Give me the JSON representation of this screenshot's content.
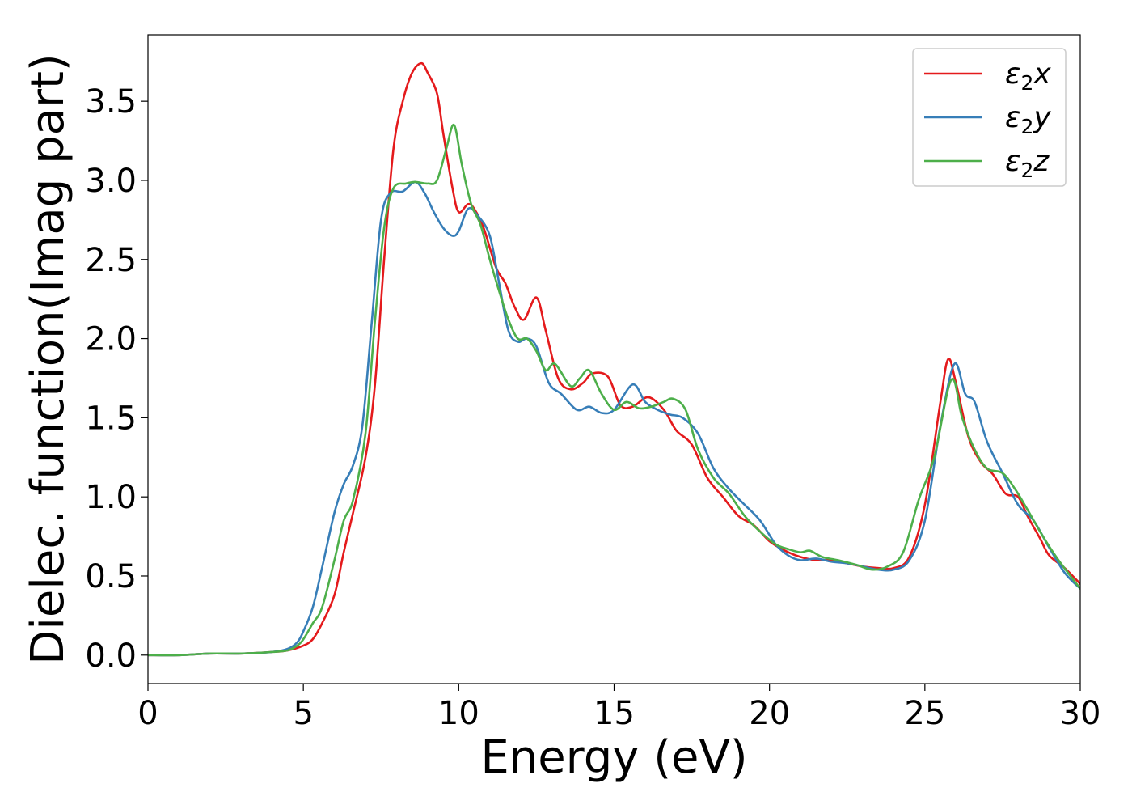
{
  "chart_data": {
    "type": "line",
    "title": "",
    "xlabel": "Energy (eV)",
    "ylabel": "Dielec. function(Imag part)",
    "xlim": [
      0,
      30
    ],
    "ylim": [
      -0.18,
      3.92
    ],
    "xticks": [
      0,
      5,
      10,
      15,
      20,
      25,
      30
    ],
    "xtick_labels": [
      "0",
      "5",
      "10",
      "15",
      "20",
      "25",
      "30"
    ],
    "yticks": [
      0.0,
      0.5,
      1.0,
      1.5,
      2.0,
      2.5,
      3.0,
      3.5
    ],
    "ytick_labels": [
      "0.0",
      "0.5",
      "1.0",
      "1.5",
      "2.0",
      "2.5",
      "3.0",
      "3.5"
    ],
    "grid": false,
    "legend_position": "top-right",
    "series": [
      {
        "name": "ε2x",
        "base": "ε",
        "sub": "2",
        "suffix": "x",
        "color": "#e41a1c",
        "points": [
          [
            0,
            0.0
          ],
          [
            1,
            0.0
          ],
          [
            2,
            0.01
          ],
          [
            3,
            0.01
          ],
          [
            4,
            0.02
          ],
          [
            4.5,
            0.03
          ],
          [
            5,
            0.06
          ],
          [
            5.3,
            0.1
          ],
          [
            5.6,
            0.2
          ],
          [
            6,
            0.38
          ],
          [
            6.3,
            0.65
          ],
          [
            6.6,
            0.9
          ],
          [
            7,
            1.25
          ],
          [
            7.3,
            1.7
          ],
          [
            7.6,
            2.5
          ],
          [
            7.9,
            3.2
          ],
          [
            8.2,
            3.5
          ],
          [
            8.5,
            3.68
          ],
          [
            8.8,
            3.74
          ],
          [
            9.0,
            3.68
          ],
          [
            9.3,
            3.55
          ],
          [
            9.5,
            3.3
          ],
          [
            9.8,
            2.95
          ],
          [
            10.0,
            2.8
          ],
          [
            10.3,
            2.85
          ],
          [
            10.5,
            2.82
          ],
          [
            10.8,
            2.7
          ],
          [
            11.2,
            2.45
          ],
          [
            11.5,
            2.35
          ],
          [
            11.8,
            2.2
          ],
          [
            12.1,
            2.12
          ],
          [
            12.5,
            2.26
          ],
          [
            12.8,
            2.05
          ],
          [
            13.2,
            1.75
          ],
          [
            13.6,
            1.68
          ],
          [
            14.0,
            1.72
          ],
          [
            14.3,
            1.78
          ],
          [
            14.8,
            1.76
          ],
          [
            15.2,
            1.58
          ],
          [
            15.6,
            1.57
          ],
          [
            16.1,
            1.63
          ],
          [
            16.6,
            1.55
          ],
          [
            17.0,
            1.42
          ],
          [
            17.5,
            1.33
          ],
          [
            18.0,
            1.12
          ],
          [
            18.5,
            1.0
          ],
          [
            19.0,
            0.88
          ],
          [
            19.5,
            0.82
          ],
          [
            20.0,
            0.72
          ],
          [
            20.5,
            0.66
          ],
          [
            21.0,
            0.62
          ],
          [
            21.5,
            0.6
          ],
          [
            22.0,
            0.6
          ],
          [
            22.5,
            0.58
          ],
          [
            23.0,
            0.56
          ],
          [
            23.5,
            0.55
          ],
          [
            24.0,
            0.55
          ],
          [
            24.5,
            0.62
          ],
          [
            25.0,
            0.95
          ],
          [
            25.5,
            1.6
          ],
          [
            25.75,
            1.87
          ],
          [
            26.0,
            1.72
          ],
          [
            26.4,
            1.38
          ],
          [
            26.8,
            1.22
          ],
          [
            27.2,
            1.14
          ],
          [
            27.6,
            1.02
          ],
          [
            28.0,
            1.0
          ],
          [
            28.3,
            0.88
          ],
          [
            28.7,
            0.74
          ],
          [
            29.0,
            0.63
          ],
          [
            29.5,
            0.55
          ],
          [
            30.0,
            0.45
          ]
        ]
      },
      {
        "name": "ε2y",
        "base": "ε",
        "sub": "2",
        "suffix": "y",
        "color": "#377eb8",
        "points": [
          [
            0,
            0.0
          ],
          [
            1,
            0.0
          ],
          [
            2,
            0.01
          ],
          [
            3,
            0.01
          ],
          [
            4,
            0.02
          ],
          [
            4.5,
            0.04
          ],
          [
            4.8,
            0.08
          ],
          [
            5.0,
            0.15
          ],
          [
            5.3,
            0.3
          ],
          [
            5.6,
            0.55
          ],
          [
            6.0,
            0.9
          ],
          [
            6.3,
            1.08
          ],
          [
            6.6,
            1.2
          ],
          [
            6.9,
            1.45
          ],
          [
            7.2,
            2.1
          ],
          [
            7.5,
            2.75
          ],
          [
            7.8,
            2.92
          ],
          [
            8.2,
            2.93
          ],
          [
            8.6,
            2.99
          ],
          [
            8.9,
            2.92
          ],
          [
            9.2,
            2.8
          ],
          [
            9.5,
            2.7
          ],
          [
            9.8,
            2.65
          ],
          [
            10.0,
            2.68
          ],
          [
            10.3,
            2.82
          ],
          [
            10.6,
            2.78
          ],
          [
            11.0,
            2.65
          ],
          [
            11.3,
            2.35
          ],
          [
            11.6,
            2.05
          ],
          [
            11.9,
            1.98
          ],
          [
            12.2,
            2.0
          ],
          [
            12.5,
            1.95
          ],
          [
            12.9,
            1.72
          ],
          [
            13.3,
            1.65
          ],
          [
            13.8,
            1.55
          ],
          [
            14.2,
            1.57
          ],
          [
            14.6,
            1.53
          ],
          [
            15.0,
            1.55
          ],
          [
            15.6,
            1.71
          ],
          [
            16.0,
            1.6
          ],
          [
            16.4,
            1.55
          ],
          [
            16.8,
            1.52
          ],
          [
            17.2,
            1.5
          ],
          [
            17.7,
            1.4
          ],
          [
            18.2,
            1.18
          ],
          [
            18.7,
            1.05
          ],
          [
            19.2,
            0.95
          ],
          [
            19.7,
            0.85
          ],
          [
            20.2,
            0.7
          ],
          [
            20.6,
            0.63
          ],
          [
            21.0,
            0.6
          ],
          [
            21.5,
            0.61
          ],
          [
            22.0,
            0.59
          ],
          [
            22.5,
            0.58
          ],
          [
            23.0,
            0.56
          ],
          [
            23.5,
            0.54
          ],
          [
            24.0,
            0.54
          ],
          [
            24.5,
            0.6
          ],
          [
            25.0,
            0.85
          ],
          [
            25.5,
            1.45
          ],
          [
            25.95,
            1.84
          ],
          [
            26.3,
            1.65
          ],
          [
            26.6,
            1.6
          ],
          [
            27.0,
            1.35
          ],
          [
            27.5,
            1.15
          ],
          [
            28.0,
            0.95
          ],
          [
            28.5,
            0.85
          ],
          [
            29.0,
            0.68
          ],
          [
            29.5,
            0.52
          ],
          [
            30.0,
            0.42
          ]
        ]
      },
      {
        "name": "ε2z",
        "base": "ε",
        "sub": "2",
        "suffix": "z",
        "color": "#4daf4a",
        "points": [
          [
            0,
            0.0
          ],
          [
            1,
            0.0
          ],
          [
            2,
            0.01
          ],
          [
            3,
            0.01
          ],
          [
            4,
            0.02
          ],
          [
            4.5,
            0.03
          ],
          [
            4.8,
            0.06
          ],
          [
            5.0,
            0.1
          ],
          [
            5.3,
            0.2
          ],
          [
            5.6,
            0.3
          ],
          [
            6.0,
            0.6
          ],
          [
            6.3,
            0.85
          ],
          [
            6.6,
            0.98
          ],
          [
            7.0,
            1.4
          ],
          [
            7.3,
            2.1
          ],
          [
            7.6,
            2.7
          ],
          [
            7.9,
            2.95
          ],
          [
            8.3,
            2.98
          ],
          [
            8.6,
            2.99
          ],
          [
            9.0,
            2.98
          ],
          [
            9.3,
            3.0
          ],
          [
            9.6,
            3.2
          ],
          [
            9.85,
            3.35
          ],
          [
            10.1,
            3.1
          ],
          [
            10.4,
            2.85
          ],
          [
            10.7,
            2.72
          ],
          [
            11.0,
            2.5
          ],
          [
            11.3,
            2.3
          ],
          [
            11.6,
            2.12
          ],
          [
            11.9,
            2.0
          ],
          [
            12.2,
            2.0
          ],
          [
            12.5,
            1.92
          ],
          [
            12.8,
            1.8
          ],
          [
            13.1,
            1.84
          ],
          [
            13.6,
            1.7
          ],
          [
            13.9,
            1.75
          ],
          [
            14.2,
            1.8
          ],
          [
            14.6,
            1.65
          ],
          [
            15.0,
            1.55
          ],
          [
            15.4,
            1.6
          ],
          [
            15.8,
            1.56
          ],
          [
            16.2,
            1.57
          ],
          [
            16.6,
            1.6
          ],
          [
            16.9,
            1.62
          ],
          [
            17.3,
            1.55
          ],
          [
            17.7,
            1.3
          ],
          [
            18.2,
            1.12
          ],
          [
            18.7,
            1.02
          ],
          [
            19.2,
            0.88
          ],
          [
            19.7,
            0.78
          ],
          [
            20.2,
            0.7
          ],
          [
            20.6,
            0.67
          ],
          [
            21.0,
            0.65
          ],
          [
            21.3,
            0.66
          ],
          [
            21.7,
            0.62
          ],
          [
            22.2,
            0.6
          ],
          [
            22.8,
            0.57
          ],
          [
            23.3,
            0.54
          ],
          [
            23.8,
            0.56
          ],
          [
            24.3,
            0.65
          ],
          [
            24.8,
            0.98
          ],
          [
            25.3,
            1.25
          ],
          [
            25.85,
            1.74
          ],
          [
            26.2,
            1.5
          ],
          [
            26.6,
            1.3
          ],
          [
            27.0,
            1.18
          ],
          [
            27.5,
            1.15
          ],
          [
            27.9,
            1.05
          ],
          [
            28.3,
            0.92
          ],
          [
            28.8,
            0.75
          ],
          [
            29.3,
            0.6
          ],
          [
            30.0,
            0.42
          ]
        ]
      }
    ]
  }
}
